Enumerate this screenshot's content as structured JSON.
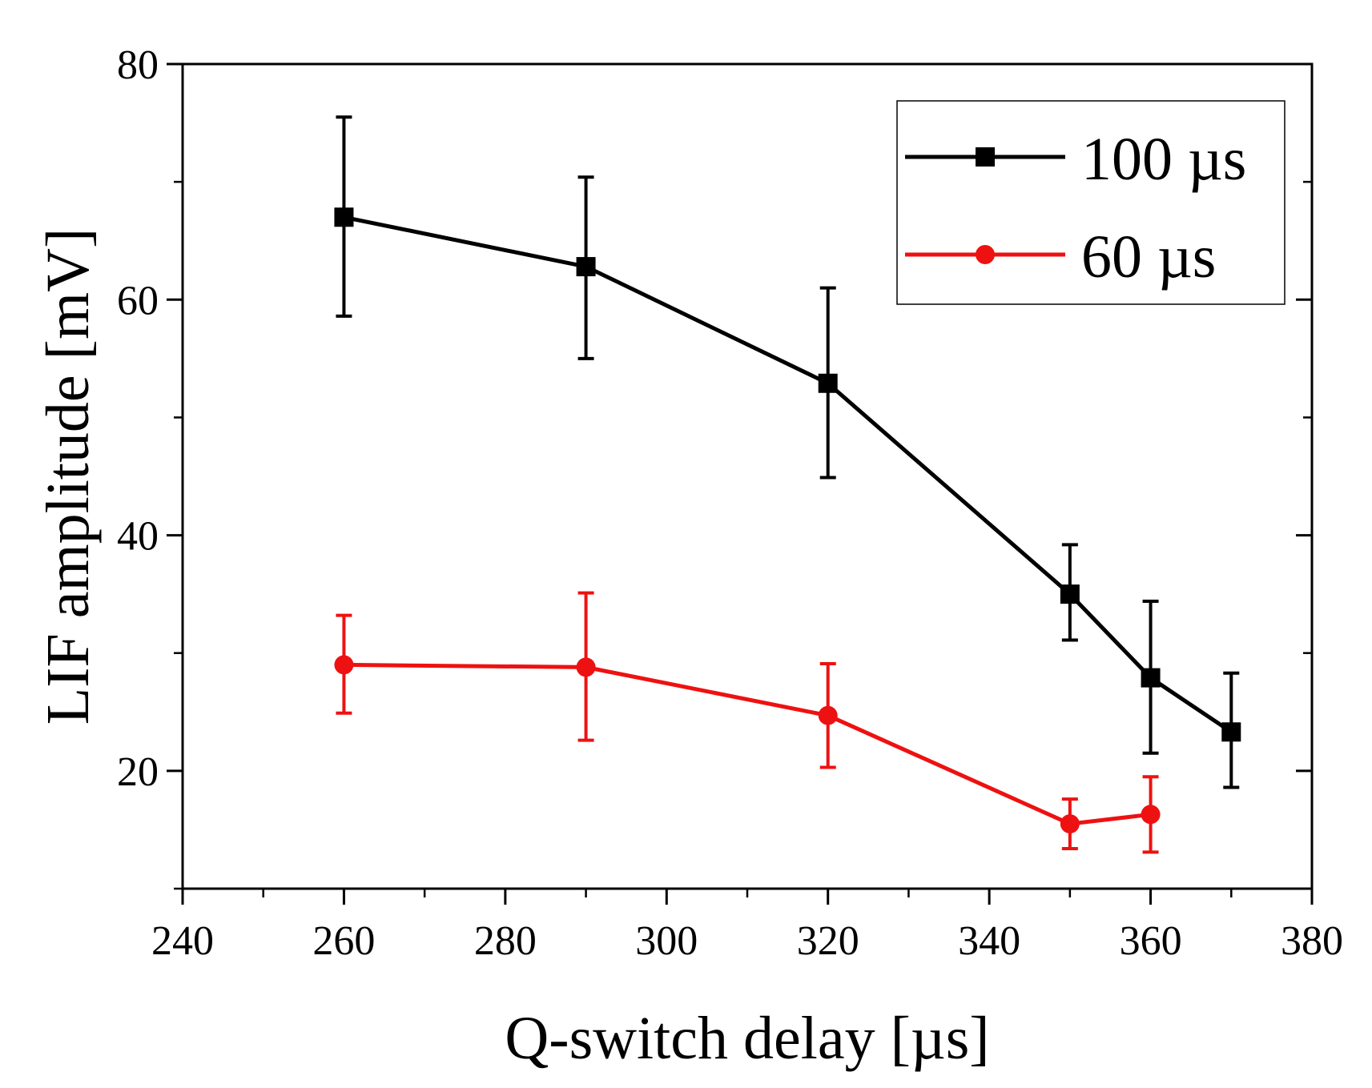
{
  "chart_data": {
    "type": "line",
    "title": "",
    "xlabel": "Q-switch delay [µs]",
    "ylabel": "LIF amplitude [mV]",
    "xlim": [
      240,
      380
    ],
    "ylim": [
      10,
      80
    ],
    "xticks": [
      240,
      260,
      280,
      300,
      320,
      340,
      360,
      380
    ],
    "xtick_labels": [
      "240",
      "260",
      "280",
      "300",
      "320",
      "340",
      "360",
      "380"
    ],
    "yticks": [
      20,
      40,
      60,
      80
    ],
    "ytick_labels": [
      "20",
      "40",
      "60",
      "80"
    ],
    "grid": false,
    "legend_position": "top-right",
    "series": [
      {
        "name": "100 µs",
        "color": "#000000",
        "marker": "square",
        "x": [
          260,
          290,
          320,
          350,
          360,
          370
        ],
        "y": [
          67.0,
          62.8,
          52.9,
          35.0,
          27.9,
          23.3
        ],
        "err_low": [
          58.6,
          55.0,
          44.9,
          31.1,
          21.5,
          18.6
        ],
        "err_high": [
          75.5,
          70.4,
          61.0,
          39.2,
          34.4,
          28.3
        ]
      },
      {
        "name": "60 µs",
        "color": "#ee1111",
        "marker": "circle",
        "x": [
          260,
          290,
          320,
          350,
          360
        ],
        "y": [
          29.0,
          28.8,
          24.7,
          15.5,
          16.3
        ],
        "err_low": [
          24.9,
          22.6,
          20.3,
          13.4,
          13.1
        ],
        "err_high": [
          33.2,
          35.1,
          29.1,
          17.6,
          19.5
        ]
      }
    ]
  }
}
